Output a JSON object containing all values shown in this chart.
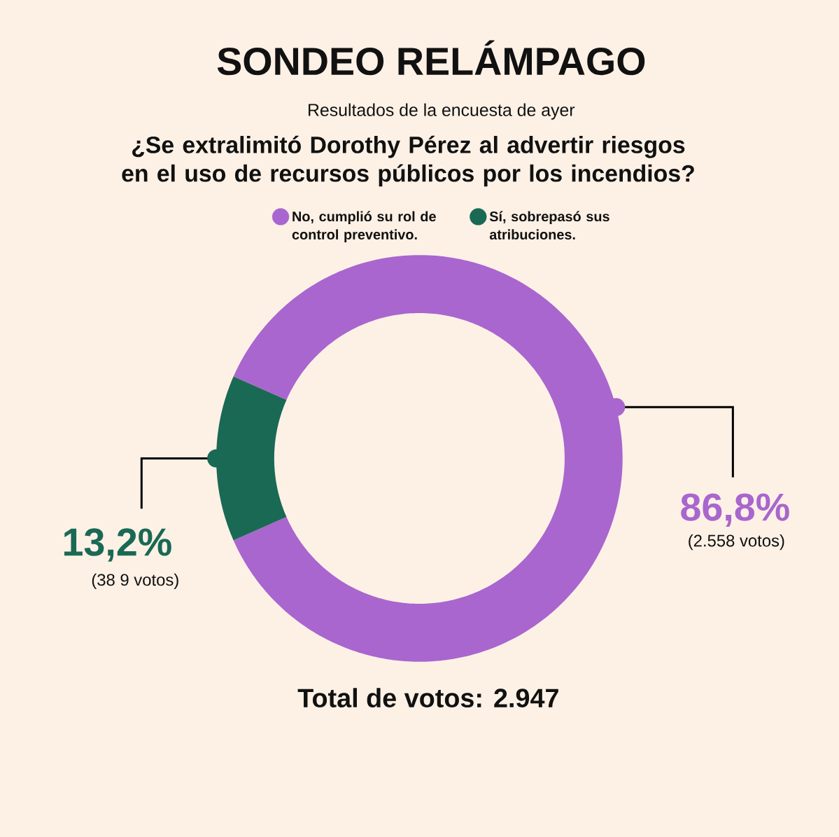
{
  "chart_data": {
    "type": "donut",
    "title": "SONDEO RELÁMPAGO",
    "subtitle": "Resultados de la encuesta de ayer",
    "categories": [
      "No, cumplió su rol de control preventivo.",
      "Sí, sobrepasó sus atribuciones."
    ],
    "values": [
      86.8,
      13.2
    ],
    "colors": [
      "#a966ce",
      "#1a6954"
    ],
    "value_labels": [
      "86,8%",
      "13,2%"
    ],
    "legend": "top",
    "annotations": [
      "¿Se extralimitó Dorothy Pérez al advertir riesgos en el uso de recursos públicos por los incendios?",
      "(2.558 votos)",
      "(38 9 votos)",
      "Total de votos:   2.947"
    ]
  }
}
